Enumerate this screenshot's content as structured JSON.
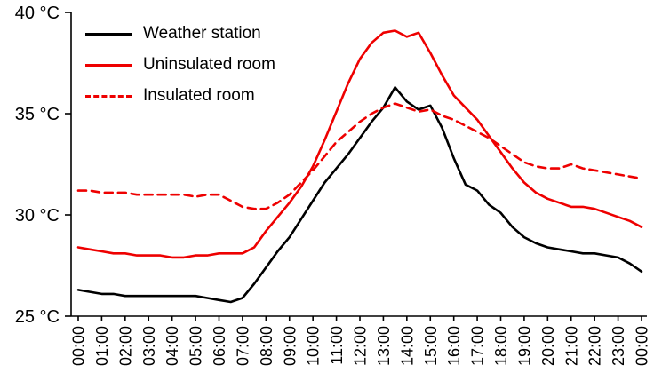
{
  "chart_data": {
    "type": "line",
    "title": "",
    "xlabel": "",
    "ylabel": "",
    "grid": false,
    "legend_position": "top-left",
    "ylim": [
      25,
      40
    ],
    "yticks": [
      {
        "value": 25,
        "label": "25 °C"
      },
      {
        "value": 30,
        "label": "30 °C"
      },
      {
        "value": 35,
        "label": "35 °C"
      },
      {
        "value": 40,
        "label": "40 °C"
      }
    ],
    "x_tick_labels": [
      "00:00",
      "01:00",
      "02:00",
      "03:00",
      "04:00",
      "05:00",
      "06:00",
      "07:00",
      "08:00",
      "09:00",
      "10:00",
      "11:00",
      "12:00",
      "13:00",
      "14:00",
      "15:00",
      "16:00",
      "17:00",
      "18:00",
      "19:00",
      "20:00",
      "21:00",
      "22:00",
      "23:00",
      "00:00"
    ],
    "x_interval_minutes": 30,
    "series": [
      {
        "name": "Weather station",
        "color": "#000000",
        "dash": "solid",
        "values": [
          26.3,
          26.2,
          26.1,
          26.1,
          26.0,
          26.0,
          26.0,
          26.0,
          26.0,
          26.0,
          26.0,
          25.9,
          25.8,
          25.7,
          25.9,
          26.6,
          27.4,
          28.2,
          28.9,
          29.8,
          30.7,
          31.6,
          32.3,
          33.0,
          33.8,
          34.6,
          35.3,
          36.3,
          35.6,
          35.2,
          35.4,
          34.3,
          32.8,
          31.5,
          31.2,
          30.5,
          30.1,
          29.4,
          28.9,
          28.6,
          28.4,
          28.3,
          28.2,
          28.1,
          28.1,
          28.0,
          27.9,
          27.6,
          27.2
        ]
      },
      {
        "name": "Uninsulated room",
        "color": "#ee0000",
        "dash": "solid",
        "values": [
          28.4,
          28.3,
          28.2,
          28.1,
          28.1,
          28.0,
          28.0,
          28.0,
          27.9,
          27.9,
          28.0,
          28.0,
          28.1,
          28.1,
          28.1,
          28.4,
          29.2,
          29.9,
          30.6,
          31.4,
          32.4,
          33.7,
          35.1,
          36.5,
          37.7,
          38.5,
          39.0,
          39.1,
          38.8,
          39.0,
          38.0,
          36.9,
          35.9,
          35.3,
          34.7,
          33.9,
          33.1,
          32.3,
          31.6,
          31.1,
          30.8,
          30.6,
          30.4,
          30.4,
          30.3,
          30.1,
          29.9,
          29.7,
          29.4
        ]
      },
      {
        "name": "Insulated room",
        "color": "#ee0000",
        "dash": "dashed",
        "values": [
          31.2,
          31.2,
          31.1,
          31.1,
          31.1,
          31.0,
          31.0,
          31.0,
          31.0,
          31.0,
          30.9,
          31.0,
          31.0,
          30.7,
          30.4,
          30.3,
          30.3,
          30.6,
          31.0,
          31.6,
          32.2,
          32.9,
          33.6,
          34.1,
          34.6,
          35.0,
          35.3,
          35.5,
          35.3,
          35.1,
          35.2,
          34.9,
          34.7,
          34.4,
          34.1,
          33.8,
          33.4,
          33.0,
          32.6,
          32.4,
          32.3,
          32.3,
          32.5,
          32.3,
          32.2,
          32.1,
          32.0,
          31.9,
          31.8
        ]
      }
    ]
  },
  "colors": {
    "axis": "#000000",
    "background": "#ffffff",
    "red": "#ee0000",
    "black": "#000000"
  }
}
